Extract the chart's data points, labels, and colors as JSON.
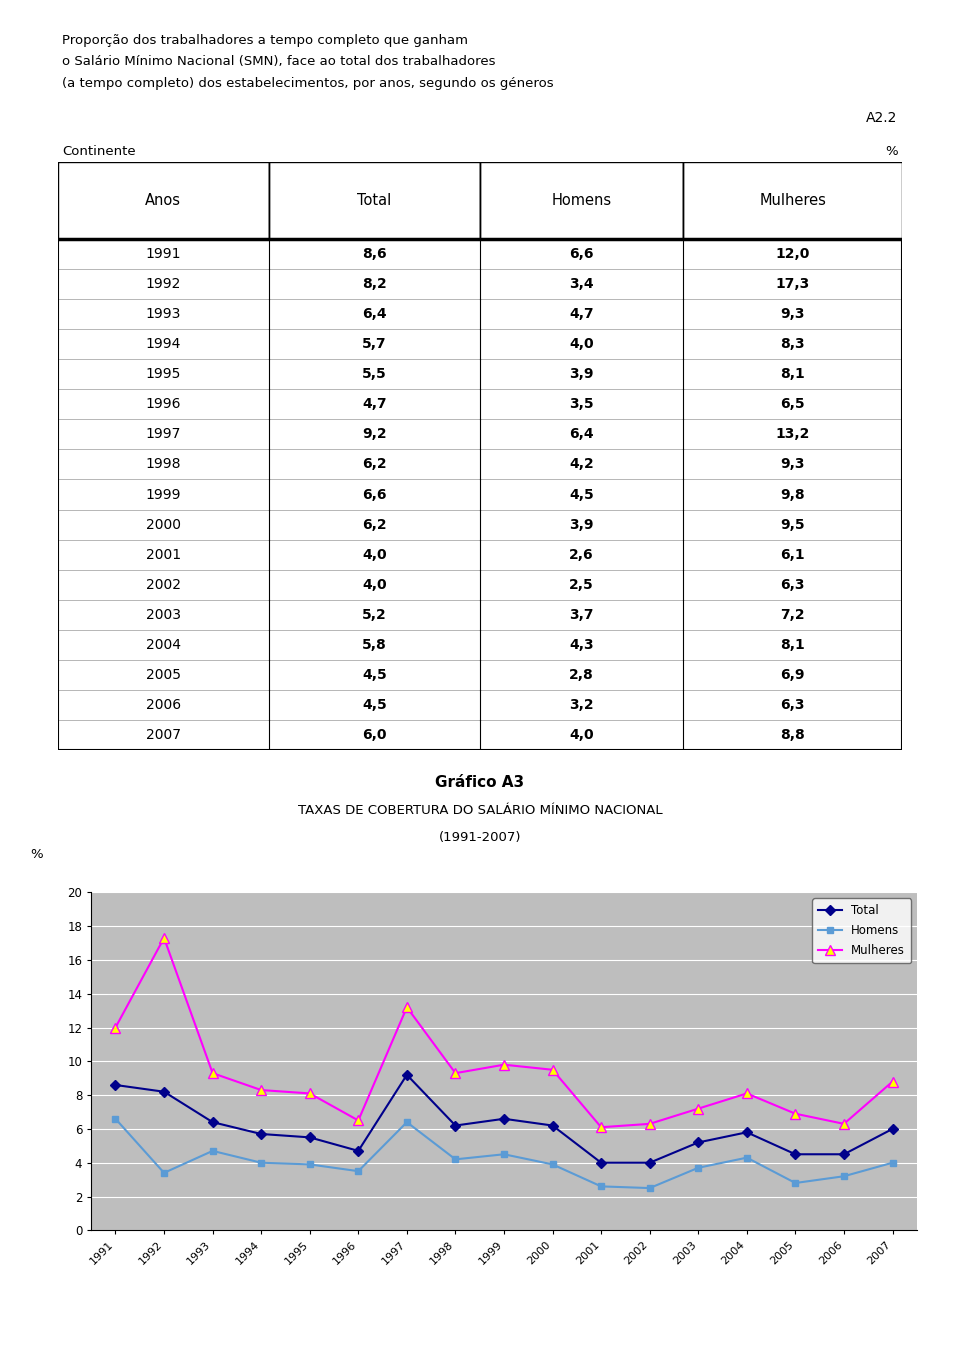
{
  "title_lines": [
    "Proporção dos trabalhadores a tempo completo que ganham",
    "o Salário Mínimo Nacional (SMN), face ao total dos trabalhadores",
    "(a tempo completo) dos estabelecimentos, por anos, segundo os géneros"
  ],
  "label_ref": "A2.2",
  "continente": "Continente",
  "pct_label": "%",
  "table_headers": [
    "Anos",
    "Total",
    "Homens",
    "Mulheres"
  ],
  "table_data": [
    [
      1991,
      8.6,
      6.6,
      12.0
    ],
    [
      1992,
      8.2,
      3.4,
      17.3
    ],
    [
      1993,
      6.4,
      4.7,
      9.3
    ],
    [
      1994,
      5.7,
      4.0,
      8.3
    ],
    [
      1995,
      5.5,
      3.9,
      8.1
    ],
    [
      1996,
      4.7,
      3.5,
      6.5
    ],
    [
      1997,
      9.2,
      6.4,
      13.2
    ],
    [
      1998,
      6.2,
      4.2,
      9.3
    ],
    [
      1999,
      6.6,
      4.5,
      9.8
    ],
    [
      2000,
      6.2,
      3.9,
      9.5
    ],
    [
      2001,
      4.0,
      2.6,
      6.1
    ],
    [
      2002,
      4.0,
      2.5,
      6.3
    ],
    [
      2003,
      5.2,
      3.7,
      7.2
    ],
    [
      2004,
      5.8,
      4.3,
      8.1
    ],
    [
      2005,
      4.5,
      2.8,
      6.9
    ],
    [
      2006,
      4.5,
      3.2,
      6.3
    ],
    [
      2007,
      6.0,
      4.0,
      8.8
    ]
  ],
  "chart_title": "Gráfico A3",
  "chart_subtitle1": "TAXAS DE COBERTURA DO SALÁRIO MÍNIMO NACIONAL",
  "chart_subtitle2": "(1991-2007)",
  "chart_ylabel": "%",
  "chart_ylim": [
    0,
    20
  ],
  "chart_yticks": [
    0,
    2,
    4,
    6,
    8,
    10,
    12,
    14,
    16,
    18,
    20
  ],
  "line_total_color": "#00008B",
  "line_homens_color": "#5B9BD5",
  "line_mulheres_color": "#FF00FF",
  "chart_bg": "#BEBEBE",
  "outer_bg": "#FFFFF0",
  "legend_labels": [
    "Total",
    "Homens",
    "Mulheres"
  ],
  "total_marker": "D",
  "homens_marker": "s",
  "mulheres_marker": "^",
  "page_bg": "#FFFFFF",
  "table_border_color": "#000000",
  "font_size_title": 9.5,
  "font_size_table": 10,
  "font_size_ref": 10
}
